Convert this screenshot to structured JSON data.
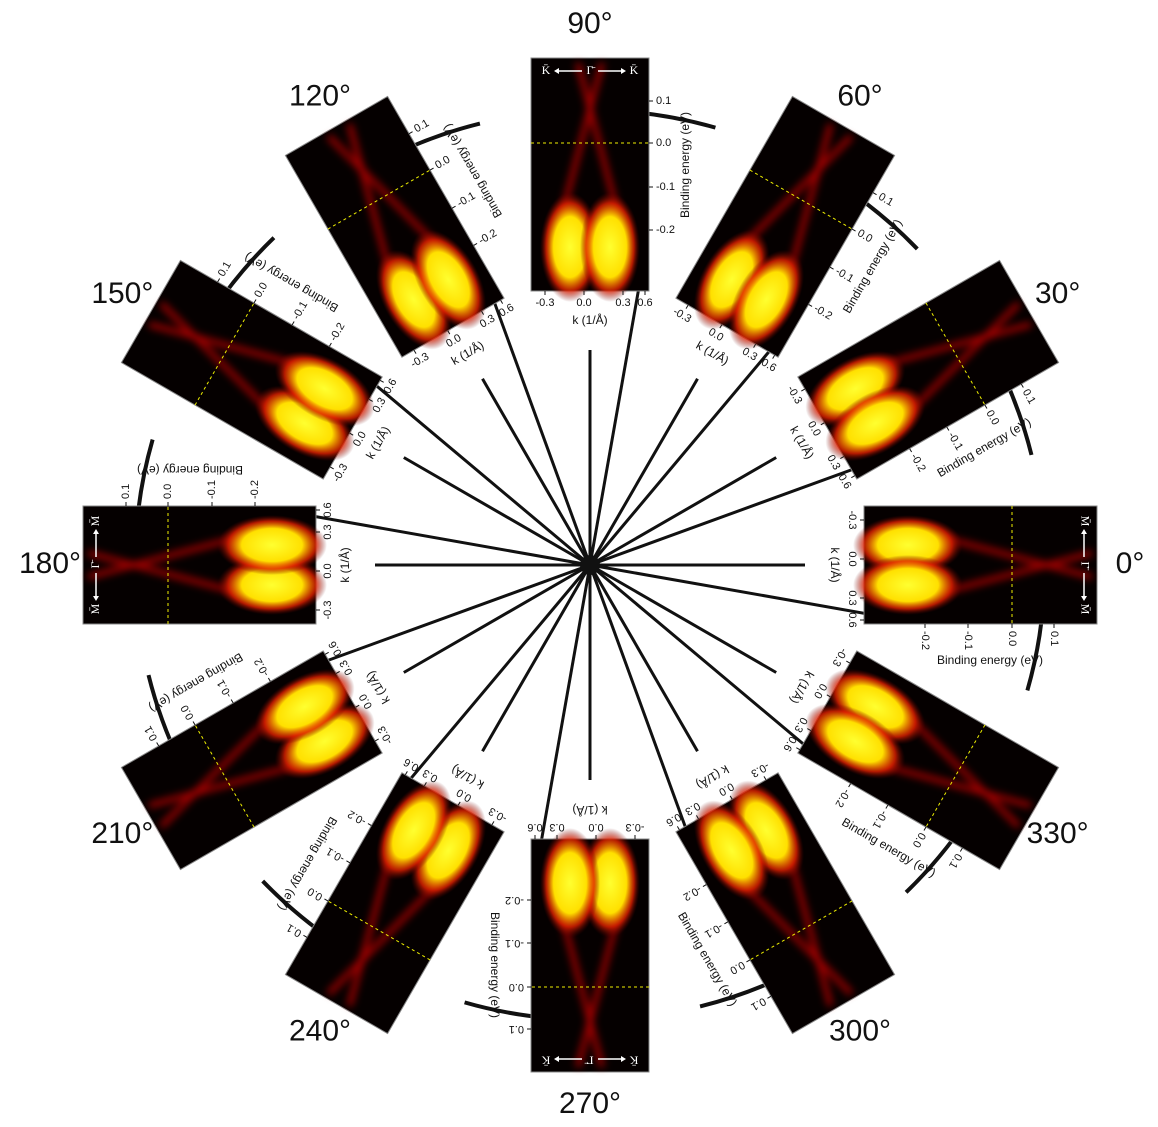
{
  "panels": [
    {
      "angle": "0°",
      "direction": [
        "M̄",
        "Γ̄",
        "M̄"
      ]
    },
    {
      "angle": "30°"
    },
    {
      "angle": "60°"
    },
    {
      "angle": "90°",
      "direction": [
        "K̄",
        "Γ̄",
        "K̄"
      ]
    },
    {
      "angle": "120°"
    },
    {
      "angle": "150°"
    },
    {
      "angle": "180°",
      "direction": [
        "M̄",
        "Γ̄",
        "M̄"
      ]
    },
    {
      "angle": "210°"
    },
    {
      "angle": "240°"
    },
    {
      "angle": "270°",
      "direction": [
        "K̄",
        "Γ̄",
        "K̄"
      ]
    },
    {
      "angle": "300°"
    },
    {
      "angle": "330°"
    }
  ],
  "axes": {
    "k_label": "k (1/Å)",
    "energy_label": "Binding energy (eV)",
    "k_ticks": [
      "-0.3",
      "0.0",
      "0.3",
      "0.6"
    ],
    "energy_ticks": [
      "0.1",
      "0.0",
      "-0.1",
      "-0.2"
    ]
  }
}
